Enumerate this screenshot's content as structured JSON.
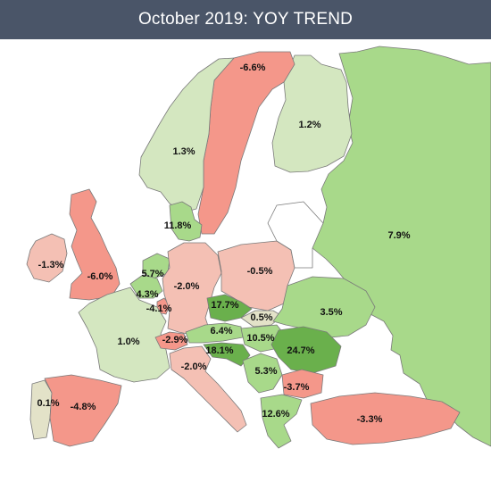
{
  "title": "October 2019: YOY TREND",
  "colors": {
    "header_bg": "#4a5568",
    "strong_positive": "#6ab04c",
    "positive": "#a8d98a",
    "slight_positive": "#d4e7c0",
    "neutral_positive": "#e3e2c8",
    "slight_negative": "#f4c0b4",
    "negative": "#f4978a",
    "no_data": "#ffffff"
  },
  "countries": [
    {
      "id": "norway",
      "value": "1.3%"
    },
    {
      "id": "sweden",
      "value": "-6.6%"
    },
    {
      "id": "finland",
      "value": "1.2%"
    },
    {
      "id": "russia",
      "value": "7.9%"
    },
    {
      "id": "denmark",
      "value": "11.8%"
    },
    {
      "id": "ireland",
      "value": "-1.3%"
    },
    {
      "id": "uk",
      "value": "-6.0%"
    },
    {
      "id": "netherlands",
      "value": "5.7%"
    },
    {
      "id": "belgium",
      "value": "4.3%"
    },
    {
      "id": "luxembourg",
      "value": "-4.1%"
    },
    {
      "id": "germany",
      "value": "-2.0%"
    },
    {
      "id": "poland",
      "value": "-0.5%"
    },
    {
      "id": "czechia",
      "value": "17.7%"
    },
    {
      "id": "slovakia",
      "value": "0.5%"
    },
    {
      "id": "ukraine",
      "value": "3.5%"
    },
    {
      "id": "france",
      "value": "1.0%"
    },
    {
      "id": "switzerland",
      "value": "-2.9%"
    },
    {
      "id": "austria",
      "value": "6.4%"
    },
    {
      "id": "hungary",
      "value": "10.5%"
    },
    {
      "id": "romania",
      "value": "24.7%"
    },
    {
      "id": "slovenia",
      "value": "18.1%"
    },
    {
      "id": "italy",
      "value": "-2.0%"
    },
    {
      "id": "serbia",
      "value": "5.3%"
    },
    {
      "id": "bulgaria",
      "value": "-3.7%"
    },
    {
      "id": "portugal",
      "value": "0.1%"
    },
    {
      "id": "spain",
      "value": "-4.8%"
    },
    {
      "id": "greece",
      "value": "12.6%"
    },
    {
      "id": "turkey",
      "value": "-3.3%"
    }
  ]
}
